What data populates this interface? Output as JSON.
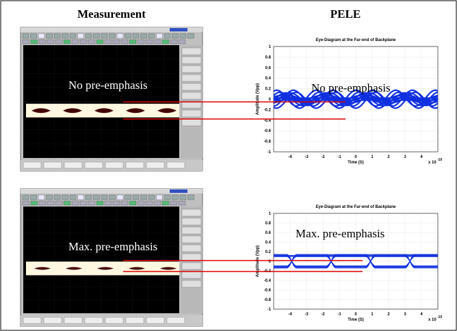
{
  "headers": {
    "measurement": "Measurement",
    "pele": "PELE"
  },
  "panels": [
    {
      "measurement_label": "No pre-emphasis",
      "pele_label": "No pre-emphasis",
      "chart": {
        "title": "Eye-Diagram at the Far-end of Backplane",
        "xlabel": "Time (S)",
        "ylabel": "Amplitude (Vpp)",
        "xlim": [
          -5,
          5
        ],
        "ylim": [
          -1,
          1
        ],
        "xticks": [
          -4,
          -3,
          -2,
          -1,
          0,
          1,
          2,
          3,
          4
        ],
        "yticks": [
          -1,
          -0.8,
          -0.6,
          -0.4,
          -0.2,
          0,
          0.2,
          0.4,
          0.6,
          0.8,
          1
        ],
        "x_exponent_base": "x 10",
        "x_exponent": "-10",
        "grid": true
      }
    },
    {
      "measurement_label": "Max. pre-emphasis",
      "pele_label": "Max. pre-emphasis",
      "chart": {
        "title": "Eye-Diagram at the Far-end of Backplane",
        "xlabel": "Time (S)",
        "ylabel": "Amplitude (Vpp)",
        "xlim": [
          -5,
          5
        ],
        "ylim": [
          -1,
          1
        ],
        "xticks": [
          -4,
          -3,
          -2,
          -1,
          0,
          1,
          2,
          3,
          4
        ],
        "yticks": [
          -1,
          -0.8,
          -0.6,
          -0.4,
          -0.2,
          0,
          0.2,
          0.4,
          0.6,
          0.8,
          1
        ],
        "x_exponent_base": "x 10",
        "x_exponent": "-10",
        "grid": true
      }
    }
  ]
}
